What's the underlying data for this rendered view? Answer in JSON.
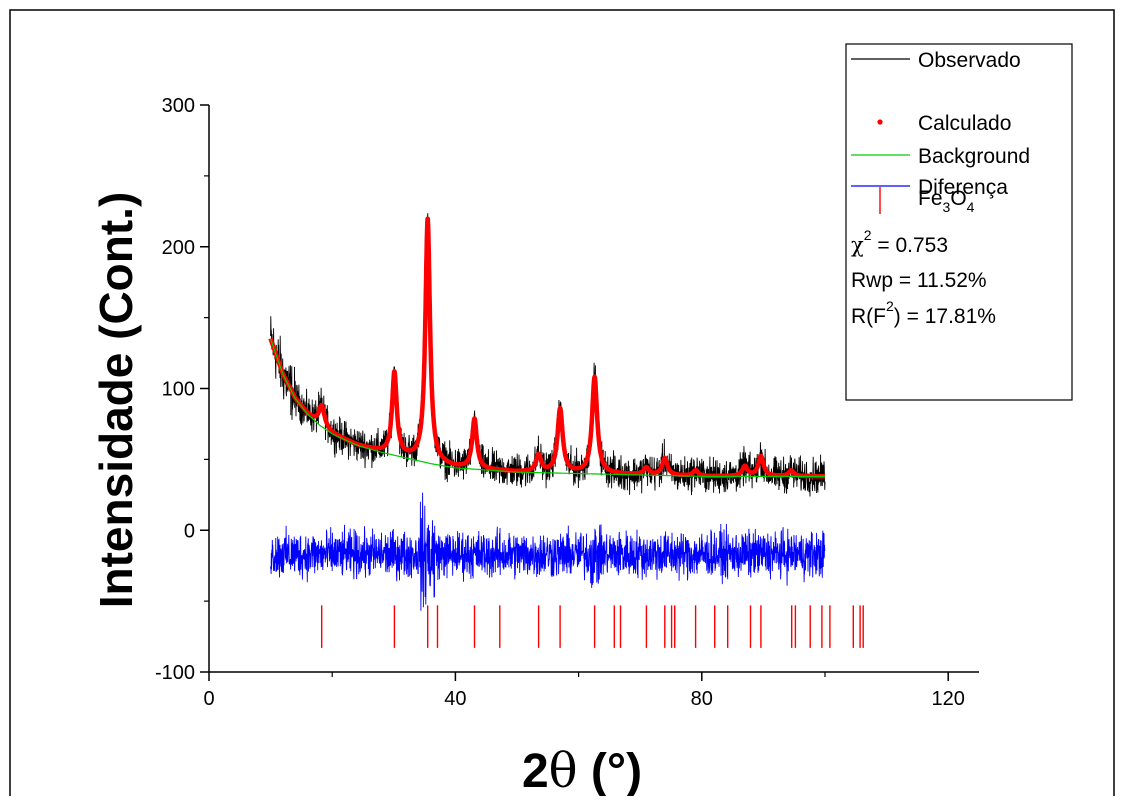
{
  "chart_data": {
    "type": "line",
    "xlabel": "2θ (°)",
    "ylabel": "Intensidade (Cont.)",
    "xlim": [
      0,
      125
    ],
    "ylim": [
      -100,
      300
    ],
    "xticks": [
      0,
      40,
      80,
      120
    ],
    "yticks": [
      -100,
      0,
      100,
      200,
      300
    ],
    "xtick_labels": [
      "0",
      "40",
      "80",
      "120"
    ],
    "ytick_labels": [
      "-100",
      "0",
      "100",
      "200",
      "300"
    ],
    "legend_position": "top-right",
    "background": {
      "x": [
        10,
        12,
        14,
        16,
        18,
        20,
        24,
        28,
        32,
        36,
        40,
        50,
        60,
        70,
        80,
        90,
        100
      ],
      "values": [
        135,
        110,
        93,
        82,
        74,
        68,
        60,
        55,
        51,
        47,
        44,
        41,
        40,
        39,
        38,
        38,
        38
      ]
    },
    "peaks": [
      {
        "x": 18.3,
        "height": 15,
        "width": 0.55
      },
      {
        "x": 30.1,
        "height": 58,
        "width": 0.45
      },
      {
        "x": 35.5,
        "height": 172,
        "width": 0.45
      },
      {
        "x": 43.1,
        "height": 35,
        "width": 0.45
      },
      {
        "x": 53.5,
        "height": 12,
        "width": 0.5
      },
      {
        "x": 57.0,
        "height": 45,
        "width": 0.5
      },
      {
        "x": 62.6,
        "height": 68,
        "width": 0.5
      },
      {
        "x": 71.0,
        "height": 5,
        "width": 0.5
      },
      {
        "x": 74.0,
        "height": 12,
        "width": 0.5
      },
      {
        "x": 79.0,
        "height": 4,
        "width": 0.5
      },
      {
        "x": 87.0,
        "height": 7,
        "width": 0.5
      },
      {
        "x": 89.6,
        "height": 14,
        "width": 0.5
      },
      {
        "x": 94.5,
        "height": 4,
        "width": 0.5
      }
    ],
    "observed_noise": 6,
    "difference": {
      "x_range": [
        10,
        100
      ],
      "offset": -17,
      "noise": 8
    },
    "phase_reflections": [
      18.3,
      30.1,
      35.5,
      37.1,
      43.1,
      47.2,
      53.5,
      57.0,
      62.6,
      65.8,
      66.8,
      71.0,
      74.0,
      75.1,
      75.6,
      79.0,
      82.1,
      84.2,
      87.9,
      89.6,
      94.6,
      95.2,
      97.6,
      99.5,
      100.8,
      104.6,
      105.7,
      106.2
    ],
    "series": [
      {
        "name": "Observado",
        "color": "#000000",
        "style": "line"
      },
      {
        "name": "Calculado",
        "color": "#ff0000",
        "style": "points"
      },
      {
        "name": "Background",
        "color": "#00cc00",
        "style": "line"
      },
      {
        "name": "Diferença",
        "color": "#0000ff",
        "style": "line"
      },
      {
        "name": "Fe3O4",
        "color": "#ff0000",
        "style": "bar"
      }
    ]
  },
  "legend": {
    "items": [
      {
        "label": "Observado"
      },
      {
        "label": "Calculado"
      },
      {
        "label": "Background"
      },
      {
        "label": "Diferença"
      }
    ],
    "phase": {
      "base1": "Fe",
      "sub1": "3",
      "base2": "O",
      "sub2": "4"
    },
    "stats": {
      "chi_symbol": "χ",
      "chi_sup": "2",
      "chi_value": " = 0.753",
      "rwp": "Rwp = 11.52%",
      "rf_a": "R(F",
      "rf_sup": "2",
      "rf_b": ") = 17.81%"
    }
  },
  "axes": {
    "xlabel_2": "2",
    "xlabel_theta": "θ",
    "xlabel_unit": " (°)",
    "ylabel": "Intensidade (Cont.)"
  }
}
